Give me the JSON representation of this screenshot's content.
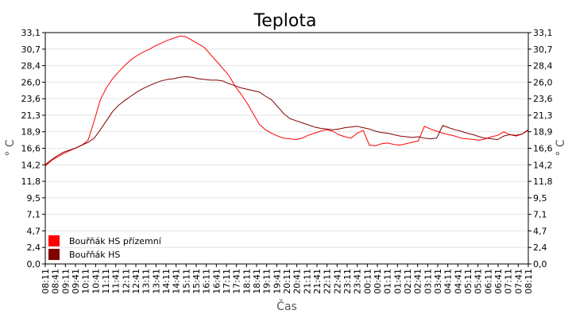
{
  "chart_data": {
    "type": "line",
    "title": "Teplota",
    "xlabel": "Čas",
    "ylabel": "° C",
    "ylim": [
      0,
      33.1
    ],
    "yticks": [
      "0,0",
      "2,4",
      "4,7",
      "7,1",
      "9,5",
      "11,8",
      "14,2",
      "16,6",
      "18,9",
      "21,3",
      "23,6",
      "26,0",
      "28,4",
      "30,7",
      "33,1"
    ],
    "x_tick_labels": [
      "08:11",
      "08:41",
      "09:11",
      "09:41",
      "10:11",
      "10:41",
      "11:11",
      "11:41",
      "12:11",
      "12:41",
      "13:11",
      "13:41",
      "14:11",
      "14:41",
      "15:11",
      "15:41",
      "16:11",
      "16:41",
      "17:11",
      "17:41",
      "18:11",
      "18:41",
      "19:11",
      "19:41",
      "20:11",
      "20:41",
      "21:11",
      "21:41",
      "22:11",
      "22:41",
      "23:11",
      "23:41",
      "00:11",
      "00:41",
      "01:11",
      "01:41",
      "02:11",
      "02:41",
      "03:11",
      "03:41",
      "04:11",
      "04:41",
      "05:11",
      "05:41",
      "06:11",
      "06:41",
      "07:11",
      "07:41",
      "08:11"
    ],
    "grid": true,
    "legend_position": "bottom-left",
    "series": [
      {
        "name": "Bouřňák HS přízemní",
        "color": "#ff0000",
        "values": [
          14.0,
          14.8,
          15.3,
          15.8,
          16.2,
          16.6,
          17.0,
          17.7,
          20.5,
          23.5,
          25.2,
          26.5,
          27.5,
          28.4,
          29.2,
          29.8,
          30.3,
          30.7,
          31.2,
          31.6,
          32.0,
          32.3,
          32.6,
          32.5,
          32.0,
          31.5,
          31.0,
          30.0,
          29.0,
          28.0,
          27.0,
          25.5,
          24.3,
          23.0,
          21.5,
          20.0,
          19.2,
          18.7,
          18.3,
          18.0,
          17.9,
          17.8,
          18.0,
          18.4,
          18.7,
          19.0,
          19.2,
          19.0,
          18.5,
          18.2,
          18.0,
          18.7,
          19.1,
          17.0,
          16.9,
          17.2,
          17.3,
          17.1,
          17.0,
          17.2,
          17.4,
          17.6,
          19.7,
          19.3,
          19.0,
          18.7,
          18.5,
          18.3,
          18.0,
          17.9,
          17.8,
          17.7,
          17.9,
          18.2,
          18.4,
          18.9,
          18.5,
          18.3,
          18.6,
          19.1
        ]
      },
      {
        "name": "Bouřňák HS",
        "color": "#800000",
        "values": [
          14.2,
          14.9,
          15.5,
          16.0,
          16.3,
          16.6,
          17.0,
          17.4,
          18.0,
          19.2,
          20.5,
          21.8,
          22.7,
          23.4,
          24.0,
          24.6,
          25.1,
          25.5,
          25.9,
          26.2,
          26.4,
          26.5,
          26.7,
          26.8,
          26.7,
          26.5,
          26.4,
          26.3,
          26.3,
          26.2,
          25.8,
          25.5,
          25.2,
          25.0,
          24.8,
          24.6,
          24.0,
          23.5,
          22.5,
          21.5,
          20.8,
          20.5,
          20.2,
          19.9,
          19.6,
          19.4,
          19.3,
          19.2,
          19.3,
          19.5,
          19.6,
          19.7,
          19.5,
          19.3,
          19.0,
          18.8,
          18.7,
          18.5,
          18.3,
          18.2,
          18.1,
          18.2,
          18.0,
          17.9,
          18.0,
          19.8,
          19.5,
          19.2,
          19.0,
          18.7,
          18.5,
          18.2,
          18.0,
          17.9,
          17.8,
          18.3,
          18.5,
          18.4,
          18.6,
          19.2
        ]
      }
    ]
  }
}
